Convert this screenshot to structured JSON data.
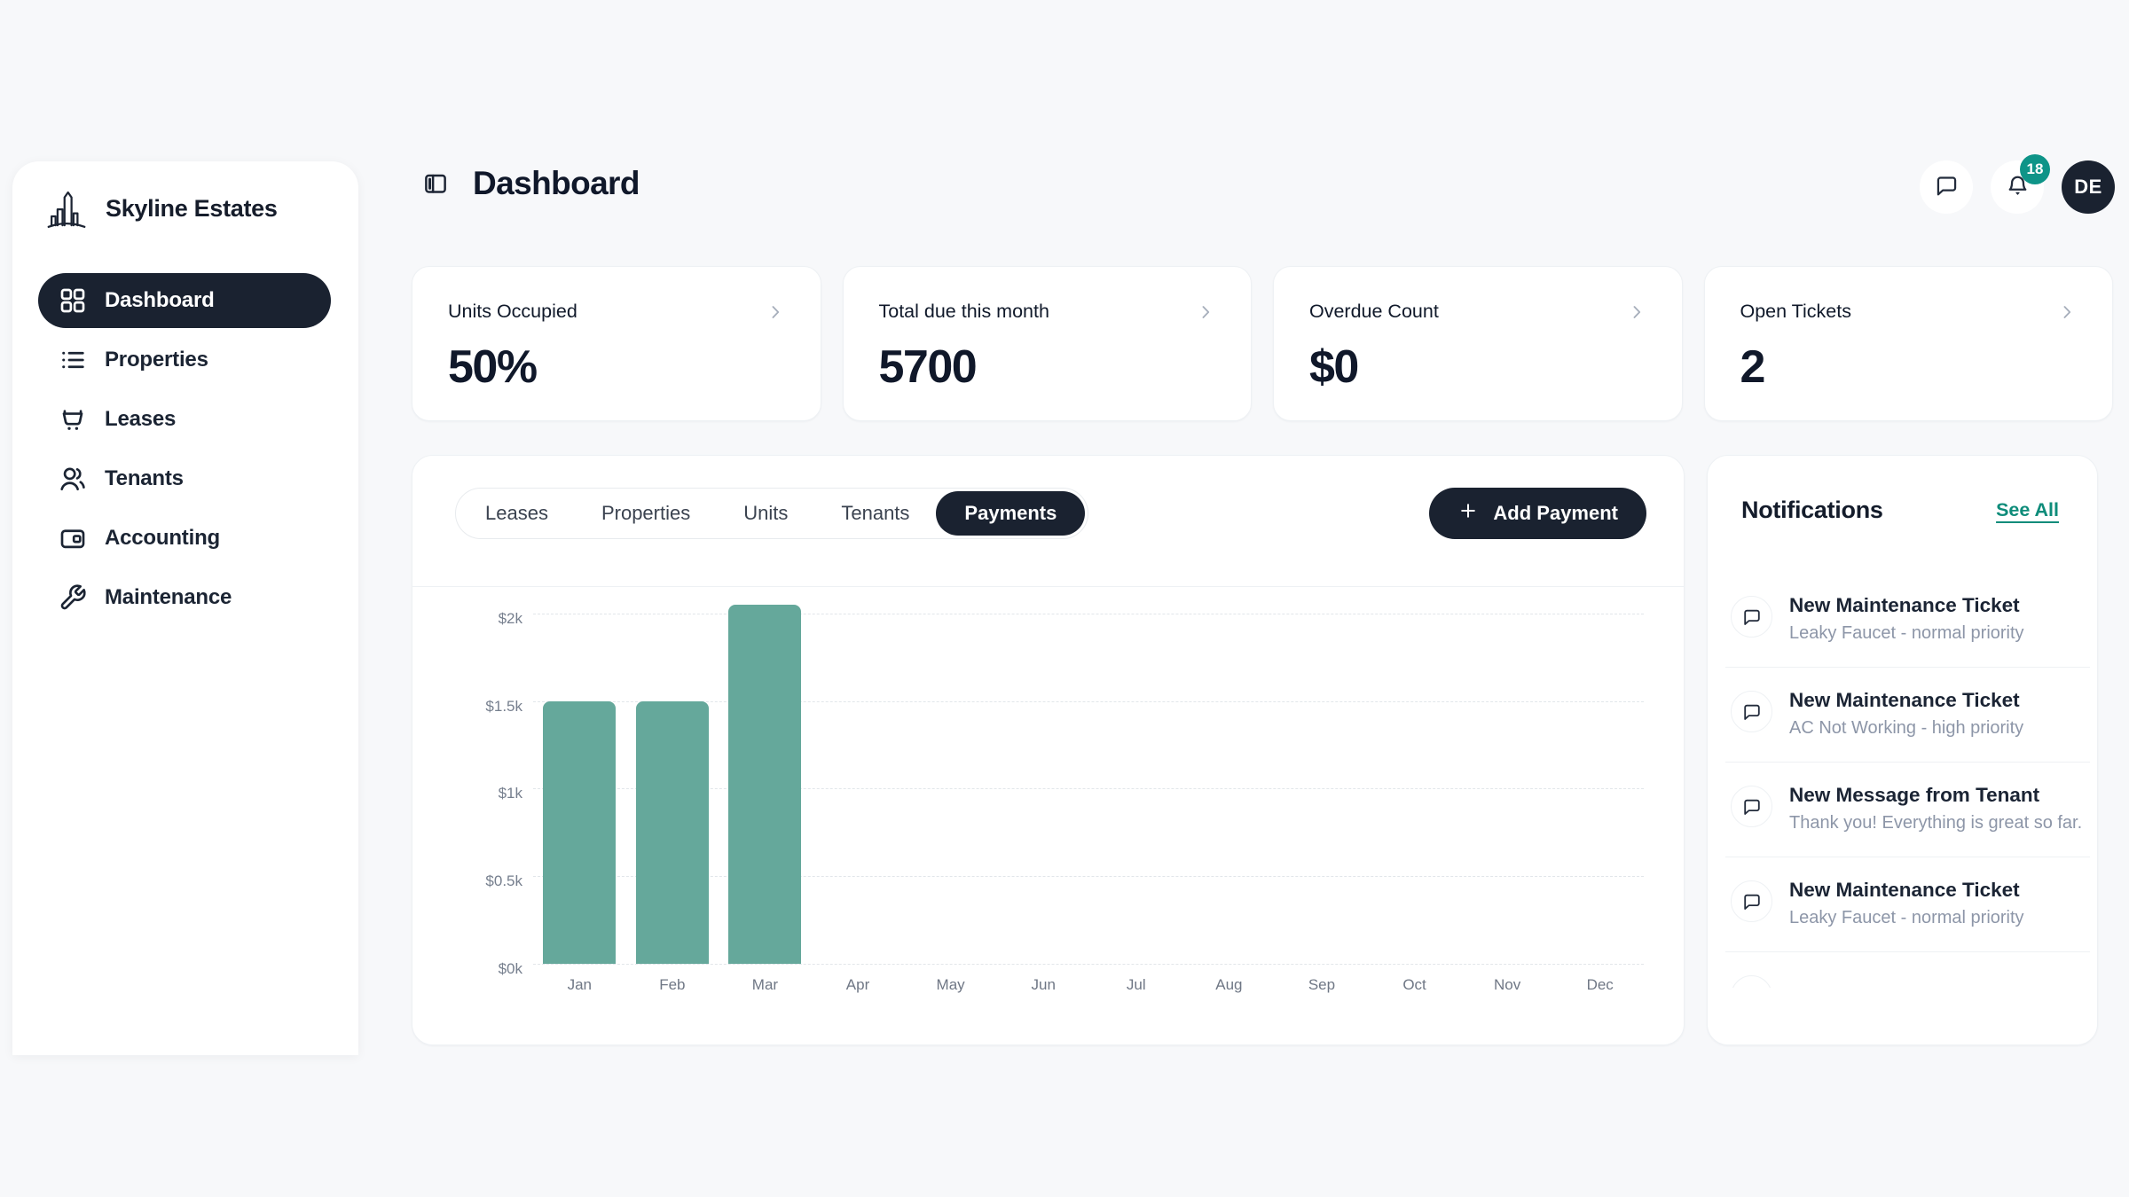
{
  "sidebar": {
    "brand": "Skyline Estates",
    "items": [
      {
        "label": "Dashboard",
        "icon": "grid",
        "active": true
      },
      {
        "label": "Properties",
        "icon": "list",
        "active": false
      },
      {
        "label": "Leases",
        "icon": "cart",
        "active": false
      },
      {
        "label": "Tenants",
        "icon": "users",
        "active": false
      },
      {
        "label": "Accounting",
        "icon": "wallet",
        "active": false
      },
      {
        "label": "Maintenance",
        "icon": "wrench",
        "active": false
      }
    ]
  },
  "header": {
    "title": "Dashboard",
    "notification_count": "18",
    "avatar_initials": "DE"
  },
  "stats": [
    {
      "label": "Units Occupied",
      "value": "50%"
    },
    {
      "label": "Total due this month",
      "value": "5700"
    },
    {
      "label": "Overdue Count",
      "value": "$0"
    },
    {
      "label": "Open Tickets",
      "value": "2"
    }
  ],
  "main": {
    "tabs": [
      {
        "label": "Leases",
        "active": false
      },
      {
        "label": "Properties",
        "active": false
      },
      {
        "label": "Units",
        "active": false
      },
      {
        "label": "Tenants",
        "active": false
      },
      {
        "label": "Payments",
        "active": true
      }
    ],
    "add_button_label": "Add Payment"
  },
  "chart_data": {
    "type": "bar",
    "title": "",
    "xlabel": "",
    "ylabel": "",
    "categories": [
      "Jan",
      "Feb",
      "Mar",
      "Apr",
      "May",
      "Jun",
      "Jul",
      "Aug",
      "Sep",
      "Oct",
      "Nov",
      "Dec"
    ],
    "values": [
      1500,
      1500,
      2050,
      0,
      0,
      0,
      0,
      0,
      0,
      0,
      0,
      0
    ],
    "ylim": [
      0,
      2050
    ],
    "yticks": [
      0,
      500,
      1000,
      1500,
      2000
    ],
    "ytick_labels": [
      "$0k",
      "$0.5k",
      "$1k",
      "$1.5k",
      "$2k"
    ],
    "grid": "horizontal-dashed",
    "legend": "none",
    "bar_color": "#65a89b"
  },
  "notifications": {
    "title": "Notifications",
    "see_all_label": "See All",
    "items": [
      {
        "title": "New Maintenance Ticket",
        "subtitle": "Leaky Faucet - normal priority"
      },
      {
        "title": "New Maintenance Ticket",
        "subtitle": "AC Not Working - high priority"
      },
      {
        "title": "New Message from Tenant",
        "subtitle": "Thank you! Everything is great so far."
      },
      {
        "title": "New Maintenance Ticket",
        "subtitle": "Leaky Faucet - normal priority"
      }
    ],
    "partial_item_visible": true
  },
  "colors": {
    "accent_dark": "#1a2230",
    "bar_teal": "#65a89b",
    "badge_teal": "#0e9488",
    "link_teal": "#0e8c7a"
  }
}
